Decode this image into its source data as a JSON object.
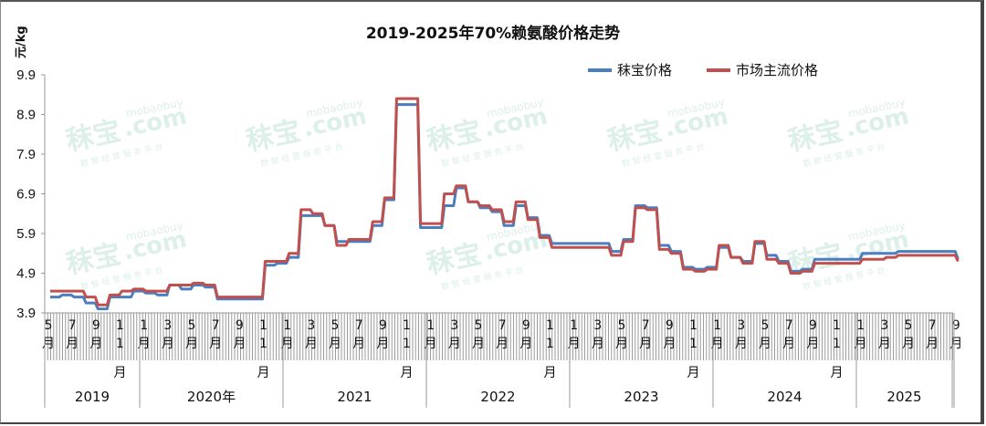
{
  "chart_data": {
    "type": "line",
    "title": "2019-2025年70%赖氨酸价格走势",
    "ylabel": "元/kg",
    "xlabel": "",
    "ylim": [
      3.9,
      9.9
    ],
    "yticks": [
      "9.9",
      "8.9",
      "7.9",
      "6.9",
      "5.9",
      "4.9",
      "3.9"
    ],
    "grid": false,
    "legend_position": "top-right",
    "x_month_labels": [
      "5",
      "7",
      "9",
      "11",
      "1",
      "3",
      "5",
      "7",
      "9",
      "11",
      "1",
      "3",
      "5",
      "7",
      "9",
      "11",
      "1",
      "3",
      "5",
      "7",
      "9",
      "11",
      "1",
      "3",
      "5",
      "7",
      "9",
      "11",
      "1",
      "3",
      "5",
      "7",
      "9",
      "11",
      "1",
      "3",
      "5",
      "7",
      "9"
    ],
    "x_year_groups": [
      {
        "label": "2019",
        "months": "5-12"
      },
      {
        "label": "2020年",
        "months": "1-12"
      },
      {
        "label": "2021",
        "months": "1-12"
      },
      {
        "label": "2022",
        "months": "1-12"
      },
      {
        "label": "2023",
        "months": "1-12"
      },
      {
        "label": "2024",
        "months": "1-12"
      },
      {
        "label": "2025",
        "months": "1-9"
      }
    ],
    "x": [
      "2019-05",
      "2019-06",
      "2019-07",
      "2019-08",
      "2019-09",
      "2019-10",
      "2019-11",
      "2019-12",
      "2020-01",
      "2020-02",
      "2020-03",
      "2020-04",
      "2020-05",
      "2020-06",
      "2020-07",
      "2020-08",
      "2020-09",
      "2020-10",
      "2020-11",
      "2020-12",
      "2021-01",
      "2021-02",
      "2021-03",
      "2021-04",
      "2021-05",
      "2021-06",
      "2021-07",
      "2021-08",
      "2021-09",
      "2021-10",
      "2021-11",
      "2021-12",
      "2022-01",
      "2022-02",
      "2022-03",
      "2022-04",
      "2022-05",
      "2022-06",
      "2022-07",
      "2022-08",
      "2022-09",
      "2022-10",
      "2022-11",
      "2022-12",
      "2023-01",
      "2023-02",
      "2023-03",
      "2023-04",
      "2023-05",
      "2023-06",
      "2023-07",
      "2023-08",
      "2023-09",
      "2023-10",
      "2023-11",
      "2023-12",
      "2024-01",
      "2024-02",
      "2024-03",
      "2024-04",
      "2024-05",
      "2024-06",
      "2024-07",
      "2024-08",
      "2024-09",
      "2024-10",
      "2024-11",
      "2024-12",
      "2025-01",
      "2025-02",
      "2025-03",
      "2025-04",
      "2025-05",
      "2025-06",
      "2025-07",
      "2025-08",
      "2025-09"
    ],
    "series": [
      {
        "name": "秣宝价格",
        "color": "#4a7ebf",
        "values": [
          4.3,
          4.35,
          4.3,
          4.15,
          4.0,
          4.3,
          4.3,
          4.45,
          4.4,
          4.35,
          4.6,
          4.5,
          4.6,
          4.55,
          4.25,
          4.25,
          4.25,
          4.25,
          5.1,
          5.15,
          5.3,
          6.35,
          6.35,
          6.1,
          5.7,
          5.7,
          5.7,
          6.1,
          6.75,
          9.15,
          9.15,
          6.05,
          6.05,
          6.6,
          7.05,
          6.7,
          6.55,
          6.45,
          6.1,
          6.6,
          6.3,
          5.85,
          5.65,
          5.65,
          5.65,
          5.65,
          5.65,
          5.45,
          5.75,
          6.6,
          6.55,
          5.6,
          5.45,
          5.05,
          5.0,
          5.05,
          5.55,
          5.3,
          5.2,
          5.65,
          5.35,
          5.2,
          4.95,
          5.0,
          5.25,
          5.25,
          5.25,
          5.25,
          5.4,
          5.4,
          5.4,
          5.45,
          5.45,
          5.45,
          5.45,
          5.45,
          5.25
        ]
      },
      {
        "name": "市场主流价格",
        "color": "#c0504d",
        "values": [
          4.45,
          4.45,
          4.45,
          4.3,
          4.1,
          4.35,
          4.45,
          4.5,
          4.45,
          4.45,
          4.6,
          4.6,
          4.65,
          4.6,
          4.3,
          4.3,
          4.3,
          4.3,
          5.2,
          5.2,
          5.4,
          6.5,
          6.4,
          6.1,
          5.6,
          5.75,
          5.75,
          6.2,
          6.8,
          9.3,
          9.3,
          6.15,
          6.15,
          6.9,
          7.1,
          6.7,
          6.6,
          6.5,
          6.2,
          6.7,
          6.25,
          5.8,
          5.55,
          5.55,
          5.55,
          5.55,
          5.55,
          5.35,
          5.7,
          6.55,
          6.5,
          5.5,
          5.4,
          5.0,
          4.95,
          5.0,
          5.6,
          5.3,
          5.15,
          5.7,
          5.25,
          5.15,
          4.9,
          4.95,
          5.15,
          5.15,
          5.15,
          5.15,
          5.25,
          5.25,
          5.3,
          5.35,
          5.35,
          5.35,
          5.35,
          5.35,
          5.2
        ]
      }
    ]
  },
  "title": "2019-2025年70%赖氨酸价格走势",
  "yaxis": {
    "unit": "元/kg"
  },
  "legend": [
    {
      "label": "秣宝价格",
      "color": "#4a7ebf"
    },
    {
      "label": "市场主流价格",
      "color": "#c0504d"
    }
  ],
  "month_char": "月",
  "watermark": {
    "brand": "秣宝",
    "site": "mobaobuy",
    "domain": ".com",
    "slogan": "数智经营服务平台"
  }
}
